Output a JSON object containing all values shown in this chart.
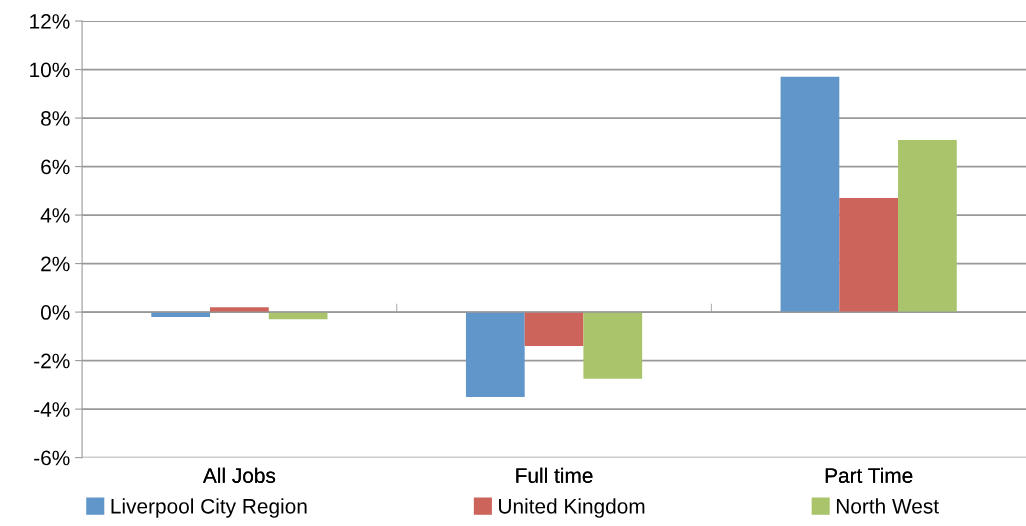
{
  "chart_data": {
    "type": "bar",
    "categories": [
      "All Jobs",
      "Full time",
      "Part Time"
    ],
    "series": [
      {
        "name": "Liverpool City Region",
        "color": "#6096c9",
        "values": [
          -0.2,
          -3.5,
          9.7
        ]
      },
      {
        "name": "United Kingdom",
        "color": "#cc645c",
        "values": [
          0.2,
          -1.4,
          4.7
        ]
      },
      {
        "name": "North West",
        "color": "#a9c46a",
        "values": [
          -0.3,
          -2.75,
          7.1
        ]
      }
    ],
    "ylim": [
      -6,
      12
    ],
    "yticks": [
      {
        "value": -6,
        "label": "-6%"
      },
      {
        "value": -4,
        "label": "-4%"
      },
      {
        "value": -2,
        "label": "-2%"
      },
      {
        "value": 0,
        "label": "0%"
      },
      {
        "value": 2,
        "label": "2%"
      },
      {
        "value": 4,
        "label": "4%"
      },
      {
        "value": 6,
        "label": "6%"
      },
      {
        "value": 8,
        "label": "8%"
      },
      {
        "value": 10,
        "label": "10%"
      },
      {
        "value": 12,
        "label": "12%"
      }
    ],
    "grid": "y",
    "legend": "bottom"
  }
}
